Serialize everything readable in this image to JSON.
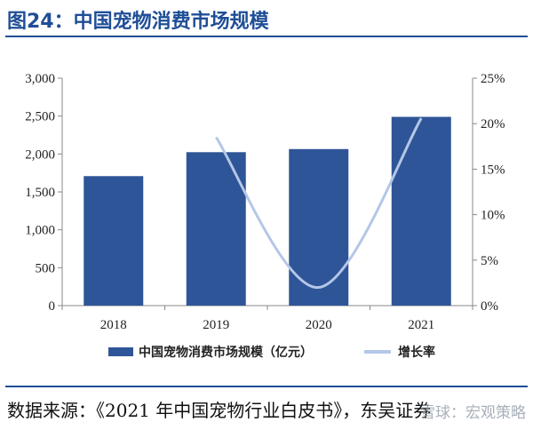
{
  "figure": {
    "title": "图24：中国宠物消费市场规模",
    "source": "数据来源：《2021 年中国宠物行业白皮书》，东吴证券",
    "watermark": "雪球：宏观策略"
  },
  "colors": {
    "bar": "#2e5597",
    "line": "#b4c7e7",
    "title": "#1f4e96",
    "axis": "#888888"
  },
  "chart_data": {
    "type": "bar",
    "title": "",
    "xlabel": "",
    "ylabel": "",
    "categories": [
      "2018",
      "2019",
      "2020",
      "2021"
    ],
    "series": [
      {
        "name": "中国宠物消费市场规模（亿元）",
        "type": "bar",
        "axis": "left",
        "values": [
          1708,
          2024,
          2065,
          2490
        ]
      },
      {
        "name": "增长率",
        "type": "line",
        "axis": "right",
        "smooth": true,
        "values": [
          null,
          18.5,
          2.0,
          20.6
        ]
      }
    ],
    "ylim": [
      0,
      3000
    ],
    "y_ticks": [
      "0",
      "500",
      "1,000",
      "1,500",
      "2,000",
      "2,500",
      "3,000"
    ],
    "y2lim": [
      0,
      25
    ],
    "y2_ticks": [
      "0%",
      "5%",
      "10%",
      "15%",
      "20%",
      "25%"
    ],
    "grid": false,
    "legend": "bottom"
  }
}
